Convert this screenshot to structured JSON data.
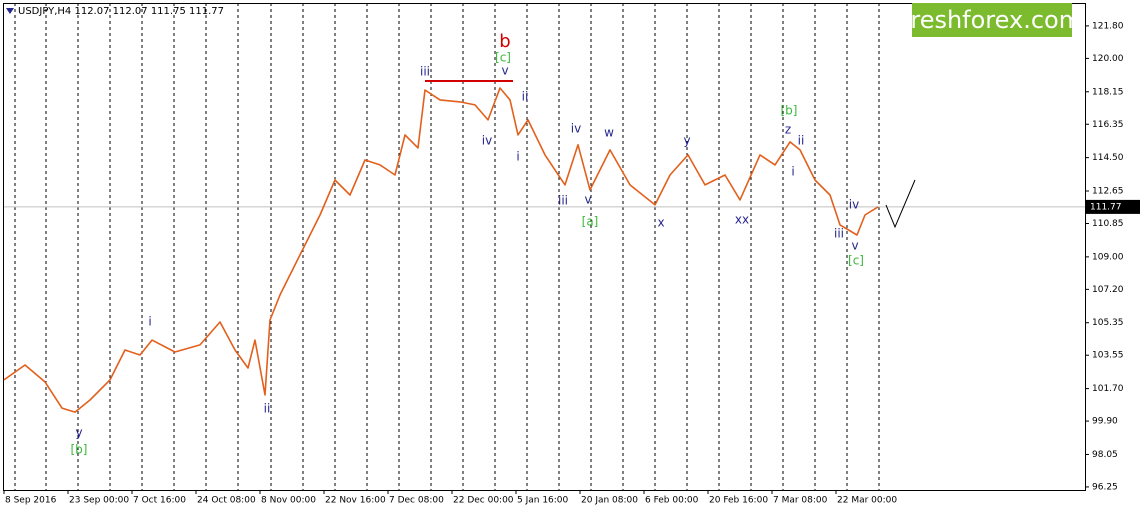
{
  "chart_data": {
    "type": "line",
    "title": "USDJPY,H4 112.07 112.07 111.75 111.77",
    "logo": "freshforex.com",
    "x": [
      0,
      21,
      41,
      58,
      71,
      86,
      106,
      121,
      136,
      148,
      171,
      196,
      216,
      231,
      244,
      251,
      261,
      266,
      276,
      296,
      316,
      331,
      346,
      361,
      376,
      391,
      401,
      414,
      421,
      436,
      456,
      471,
      484,
      496,
      506,
      514,
      524,
      541,
      561,
      574,
      586,
      606,
      626,
      651,
      666,
      684,
      701,
      721,
      736,
      756,
      771,
      786,
      796,
      811,
      826,
      836,
      853,
      861,
      874
    ],
    "series": [
      {
        "name": "USDJPY",
        "color": "#e2601c",
        "values": [
          102.18,
          103.01,
          102.07,
          100.62,
          100.4,
          101.07,
          102.18,
          103.84,
          103.56,
          104.39,
          103.73,
          104.12,
          105.39,
          103.84,
          102.84,
          104.39,
          101.35,
          105.5,
          106.89,
          109.11,
          111.32,
          113.26,
          112.43,
          114.37,
          114.1,
          113.54,
          115.76,
          115.04,
          118.25,
          117.7,
          117.59,
          117.42,
          116.59,
          118.36,
          117.7,
          115.76,
          116.59,
          114.65,
          112.99,
          115.21,
          112.71,
          114.93,
          112.99,
          111.88,
          113.54,
          114.65,
          112.99,
          113.54,
          112.16,
          114.65,
          114.1,
          115.37,
          114.93,
          113.26,
          112.43,
          110.77,
          110.21,
          111.32,
          111.77
        ]
      }
    ],
    "current_price": 111.77,
    "xlim": [
      0,
      1081
    ],
    "ylim": [
      96.08,
      123.07
    ],
    "xticks": [
      {
        "value": 0,
        "label": "8 Sep 2016"
      },
      {
        "value": 64,
        "label": "23 Sep 00:00"
      },
      {
        "value": 128,
        "label": "7 Oct 16:00"
      },
      {
        "value": 192,
        "label": "24 Oct 08:00"
      },
      {
        "value": 256,
        "label": "8 Nov 00:00"
      },
      {
        "value": 320,
        "label": "22 Nov 16:00"
      },
      {
        "value": 384,
        "label": "7 Dec 08:00"
      },
      {
        "value": 448,
        "label": "22 Dec 00:00"
      },
      {
        "value": 512,
        "label": "5 Jan 16:00"
      },
      {
        "value": 576,
        "label": "20 Jan 08:00"
      },
      {
        "value": 640,
        "label": "6 Feb 00:00"
      },
      {
        "value": 704,
        "label": "20 Feb 16:00"
      },
      {
        "value": 768,
        "label": "7 Mar 08:00"
      },
      {
        "value": 832,
        "label": "22 Mar 00:00"
      }
    ],
    "yticks": [
      96.25,
      98.05,
      {
        "value": 99.9,
        "label": "99.90"
      },
      {
        "value": 101.7,
        "label": "101.70"
      },
      103.55,
      105.35,
      {
        "value": 107.2,
        "label": "107.20"
      },
      {
        "value": 109,
        "label": "109.00"
      },
      110.85,
      112.65,
      {
        "value": 114.5,
        "label": "114.50"
      },
      116.35,
      118.15,
      {
        "value": 120,
        "label": "120.00"
      },
      {
        "value": 121.8,
        "label": "121.80"
      }
    ],
    "separators": [
      11,
      42,
      74,
      106,
      138,
      170,
      202,
      234,
      267,
      299,
      331,
      363,
      395,
      427,
      459,
      491,
      523,
      555,
      587,
      619,
      651,
      683,
      715,
      747,
      779,
      811,
      843,
      875
    ],
    "level_lines": [
      {
        "value": 118.75,
        "x": [
          421,
          509
        ],
        "color": "#d40000"
      }
    ],
    "major_label": {
      "text": "b",
      "x": 501,
      "y": 120.91,
      "color": "#d40000"
    },
    "annotations": [
      {
        "text": "y",
        "x": 75,
        "y": 99.24,
        "color": "#25258c"
      },
      {
        "text": "[b]",
        "x": 75,
        "y": 98.3,
        "color": "#3cb83c"
      },
      {
        "text": "i",
        "x": 146,
        "y": 105.39,
        "color": "#25258c"
      },
      {
        "text": "ii",
        "x": 263,
        "y": 100.57,
        "color": "#25258c"
      },
      {
        "text": "iii",
        "x": 421,
        "y": 119.25,
        "color": "#25258c"
      },
      {
        "text": "[c]",
        "x": 499,
        "y": 120.03,
        "color": "#3cb83c"
      },
      {
        "text": "v",
        "x": 501,
        "y": 119.31,
        "color": "#25258c"
      },
      {
        "text": "iv",
        "x": 483,
        "y": 115.43,
        "color": "#25258c"
      },
      {
        "text": "ii",
        "x": 521,
        "y": 117.86,
        "color": "#25258c"
      },
      {
        "text": "i",
        "x": 514,
        "y": 114.54,
        "color": "#25258c"
      },
      {
        "text": "iv",
        "x": 572,
        "y": 116.09,
        "color": "#25258c"
      },
      {
        "text": "w",
        "x": 605,
        "y": 115.87,
        "color": "#25258c"
      },
      {
        "text": "iii",
        "x": 559,
        "y": 112.1,
        "color": "#25258c"
      },
      {
        "text": "v",
        "x": 584,
        "y": 112.15,
        "color": "#25258c"
      },
      {
        "text": "[a]",
        "x": 586,
        "y": 110.94,
        "color": "#3cb83c"
      },
      {
        "text": "x",
        "x": 657,
        "y": 110.88,
        "color": "#25258c"
      },
      {
        "text": "y",
        "x": 683,
        "y": 115.43,
        "color": "#25258c"
      },
      {
        "text": "xx",
        "x": 738,
        "y": 111.05,
        "color": "#25258c"
      },
      {
        "text": "[b]",
        "x": 785,
        "y": 117.09,
        "color": "#3cb83c"
      },
      {
        "text": "z",
        "x": 784,
        "y": 116.04,
        "color": "#25258c"
      },
      {
        "text": "ii",
        "x": 797,
        "y": 115.43,
        "color": "#25258c"
      },
      {
        "text": "i",
        "x": 789,
        "y": 113.71,
        "color": "#25258c"
      },
      {
        "text": "iii",
        "x": 835,
        "y": 110.27,
        "color": "#25258c"
      },
      {
        "text": "iv",
        "x": 850,
        "y": 111.88,
        "color": "#25258c"
      },
      {
        "text": "v",
        "x": 851,
        "y": 109.6,
        "color": "#25258c"
      },
      {
        "text": "[c]",
        "x": 852,
        "y": 108.77,
        "color": "#3cb83c"
      }
    ]
  }
}
